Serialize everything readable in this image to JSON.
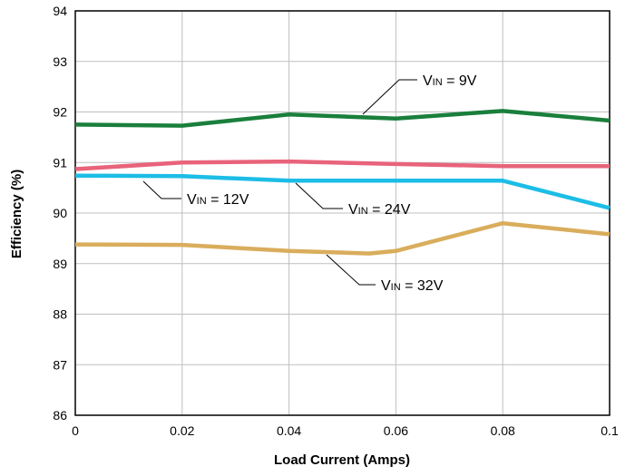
{
  "chart_data": {
    "type": "line",
    "title": "",
    "xlabel": "Load Current (Amps)",
    "ylabel": "Efficiency (%)",
    "xlim": [
      0,
      0.1
    ],
    "ylim": [
      86,
      94
    ],
    "x_ticks": [
      0,
      0.02,
      0.04,
      0.06,
      0.08,
      0.1
    ],
    "x_tick_labels": [
      "0",
      "0.02",
      "0.04",
      "0.06",
      "0.08",
      "0.1"
    ],
    "y_ticks": [
      86,
      87,
      88,
      89,
      90,
      91,
      92,
      93,
      94
    ],
    "y_tick_labels": [
      "86",
      "87",
      "88",
      "89",
      "90",
      "91",
      "92",
      "93",
      "94"
    ],
    "grid": true,
    "series": [
      {
        "name": "VIN = 9V",
        "label_main": "V",
        "label_sub": "IN",
        "label_value": " = 9V",
        "color": "#1a7f3c",
        "x": [
          0,
          0.02,
          0.04,
          0.06,
          0.08,
          0.1
        ],
        "y": [
          91.75,
          91.73,
          91.95,
          91.87,
          92.02,
          91.83
        ]
      },
      {
        "name": "VIN = 12V",
        "label_main": "V",
        "label_sub": "IN",
        "label_value": " = 12V",
        "color": "#e8637b",
        "x": [
          0,
          0.02,
          0.04,
          0.06,
          0.08,
          0.1
        ],
        "y": [
          90.87,
          91.0,
          91.02,
          90.97,
          90.93,
          90.93
        ]
      },
      {
        "name": "VIN = 24V",
        "label_main": "V",
        "label_sub": "IN",
        "label_value": " = 24V",
        "color": "#1cbde6",
        "x": [
          0,
          0.02,
          0.04,
          0.06,
          0.08,
          0.1
        ],
        "y": [
          90.74,
          90.73,
          90.64,
          90.64,
          90.64,
          90.1
        ]
      },
      {
        "name": "VIN = 32V",
        "label_main": "V",
        "label_sub": "IN",
        "label_value": " = 32V",
        "color": "#d9ad5c",
        "x": [
          0,
          0.02,
          0.04,
          0.055,
          0.06,
          0.08,
          0.1
        ],
        "y": [
          89.38,
          89.37,
          89.25,
          89.2,
          89.25,
          89.8,
          89.58
        ]
      }
    ]
  }
}
